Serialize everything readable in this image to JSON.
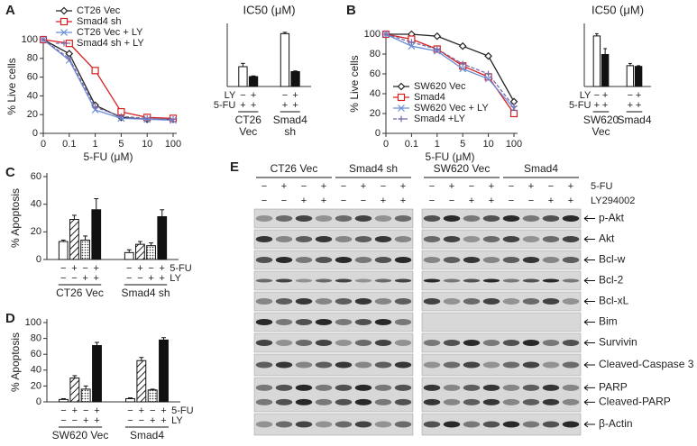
{
  "chart_data": [
    {
      "panel": "A",
      "type": "line",
      "y_label": "% Live cells",
      "x_label": "5-FU (μM)",
      "legend": "top",
      "categories": [
        "0",
        "0.1",
        "1",
        "5",
        "10",
        "100"
      ],
      "ylim": [
        0,
        100
      ],
      "yticks": [
        0,
        20,
        40,
        60,
        80,
        100
      ],
      "series": [
        {
          "name": "CT26 Vec",
          "color": "#222222",
          "marker": "diamond",
          "dash": false,
          "values": [
            100,
            85,
            30,
            17,
            15,
            15
          ]
        },
        {
          "name": "Smad4 sh",
          "color": "#d62020",
          "marker": "square",
          "dash": false,
          "values": [
            100,
            96,
            67,
            23,
            17,
            16
          ]
        },
        {
          "name": "CT26 Vec + LY",
          "color": "#6a8fd8",
          "marker": "x",
          "dash": false,
          "values": [
            100,
            78,
            25,
            16,
            15,
            14
          ]
        },
        {
          "name": "Smad4 sh + LY",
          "color": "#7a6aa8",
          "marker": "plus",
          "dash": true,
          "values": [
            100,
            80,
            28,
            18,
            16,
            15
          ]
        }
      ]
    },
    {
      "type": "bar",
      "title": "IC50 (μM)",
      "ylim": [
        0,
        1.8
      ],
      "values": [
        0.6,
        0.3,
        1.6,
        0.45
      ],
      "errors": [
        0.1,
        0.02,
        0.04,
        0.02
      ],
      "patterns": [
        "white",
        "black",
        "white",
        "black"
      ],
      "row_label_side": "left",
      "rows": [
        {
          "name": "LY",
          "signs": [
            "−",
            "+",
            "−",
            "+"
          ]
        },
        {
          "name": "5-FU",
          "signs": [
            "+",
            "+",
            "+",
            "+"
          ]
        }
      ],
      "groups": [
        [
          "CT26",
          "Vec"
        ],
        [
          "Smad4",
          "sh"
        ]
      ]
    },
    {
      "panel": "B",
      "type": "line",
      "y_label": "% Live cells",
      "x_label": "5-FU (μM)",
      "legend": "lower left",
      "categories": [
        "0",
        "0.1",
        "1",
        "5",
        "10",
        "100"
      ],
      "ylim": [
        0,
        100
      ],
      "yticks": [
        0,
        20,
        40,
        60,
        80,
        100
      ],
      "series": [
        {
          "name": "SW620 Vec",
          "color": "#222222",
          "marker": "diamond",
          "dash": false,
          "values": [
            100,
            100,
            98,
            88,
            78,
            32
          ]
        },
        {
          "name": "Smad4",
          "color": "#d62020",
          "marker": "square",
          "dash": false,
          "values": [
            100,
            95,
            85,
            68,
            57,
            20
          ]
        },
        {
          "name": "SW620 Vec + LY",
          "color": "#6a8fd8",
          "marker": "x",
          "dash": false,
          "values": [
            100,
            88,
            83,
            65,
            55,
            25
          ]
        },
        {
          "name": "Smad4 +LY",
          "color": "#7a6aa8",
          "marker": "plus",
          "dash": true,
          "values": [
            100,
            92,
            85,
            70,
            60,
            27
          ]
        }
      ]
    },
    {
      "type": "bar",
      "title": "IC50 (μM)",
      "ylim": [
        0,
        80
      ],
      "values": [
        68,
        43,
        28,
        27
      ],
      "errors": [
        3,
        8,
        3,
        1
      ],
      "patterns": [
        "white",
        "black",
        "white",
        "black"
      ],
      "row_label_side": "left",
      "rows": [
        {
          "name": "LY",
          "signs": [
            "−",
            "+",
            "−",
            "+"
          ]
        },
        {
          "name": "5-FU",
          "signs": [
            "+",
            "+",
            "+",
            "+"
          ]
        }
      ],
      "groups": [
        [
          "SW620",
          "Vec"
        ],
        [
          "Smad4"
        ]
      ]
    },
    {
      "panel": "C",
      "type": "bar",
      "y_label": "% Apoptosis",
      "ylim": [
        0,
        60
      ],
      "yticks": [
        0,
        20,
        40,
        60
      ],
      "values": [
        13,
        29,
        14,
        36,
        5,
        11,
        10,
        31
      ],
      "errors": [
        1,
        3,
        3,
        8,
        2,
        2,
        2,
        5
      ],
      "patterns": [
        "white",
        "hatch",
        "dots",
        "black",
        "white",
        "hatch",
        "dots",
        "black"
      ],
      "row_label_side": "right",
      "rows": [
        {
          "name": "5-FU",
          "signs": [
            "−",
            "+",
            "−",
            "+",
            "−",
            "+",
            "−",
            "+"
          ]
        },
        {
          "name": "LY",
          "signs": [
            "−",
            "−",
            "+",
            "+",
            "−",
            "−",
            "+",
            "+"
          ]
        }
      ],
      "groups": [
        [
          "CT26 Vec"
        ],
        [
          "Smad4 sh"
        ]
      ]
    },
    {
      "panel": "D",
      "type": "bar",
      "y_label": "% Apoptosis",
      "ylim": [
        0,
        100
      ],
      "yticks": [
        0,
        20,
        40,
        60,
        80,
        100
      ],
      "values": [
        3,
        30,
        16,
        71,
        4,
        52,
        15,
        78
      ],
      "errors": [
        1,
        3,
        4,
        4,
        1,
        4,
        1,
        3
      ],
      "patterns": [
        "white",
        "hatch",
        "dots",
        "black",
        "white",
        "hatch",
        "dots",
        "black"
      ],
      "row_label_side": "right",
      "rows": [
        {
          "name": "5-FU",
          "signs": [
            "−",
            "+",
            "−",
            "+",
            "−",
            "+",
            "−",
            "+"
          ]
        },
        {
          "name": "LY",
          "signs": [
            "−",
            "−",
            "+",
            "+",
            "−",
            "−",
            "+",
            "+"
          ]
        }
      ],
      "groups": [
        [
          "SW620 Vec"
        ],
        [
          "Smad4"
        ]
      ]
    }
  ],
  "blot": {
    "panel": "E",
    "groups": [
      "CT26 Vec",
      "Smad4 sh",
      "SW620 Vec",
      "Smad4"
    ],
    "treatments": [
      {
        "name": "5-FU",
        "signs": [
          "−",
          "+",
          "−",
          "+",
          "−",
          "+",
          "−",
          "+",
          "−",
          "+",
          "−",
          "+",
          "−",
          "+",
          "−",
          "+"
        ]
      },
      {
        "name": "LY294002",
        "signs": [
          "−",
          "−",
          "+",
          "+",
          "−",
          "−",
          "+",
          "+",
          "−",
          "−",
          "+",
          "+",
          "−",
          "−",
          "+",
          "+"
        ]
      }
    ],
    "bands": [
      "p-Akt",
      "Akt",
      "Bcl-w",
      "Bcl-2",
      "Bcl-xL",
      "Bim",
      "Survivin",
      "Cleaved-Caspase 3",
      "PARP",
      "Cleaved-PARP",
      "β-Actin"
    ]
  }
}
